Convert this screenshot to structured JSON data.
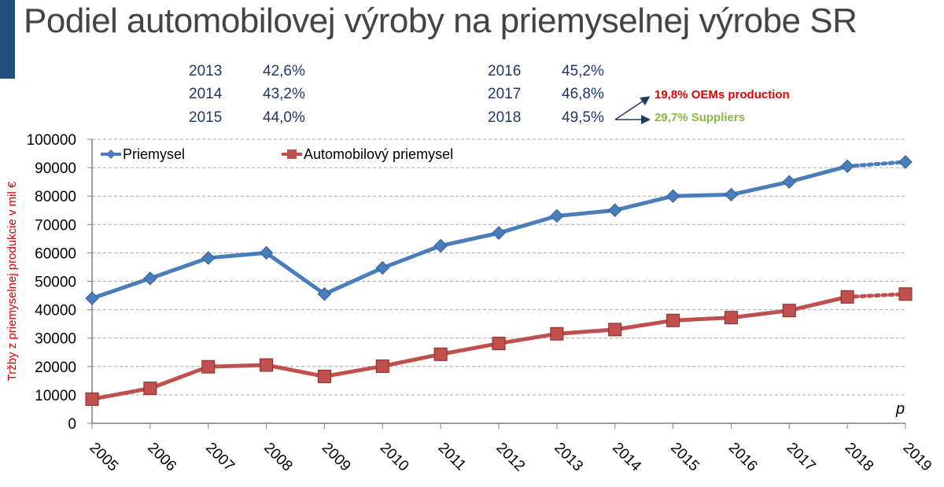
{
  "title": "Podiel automobilovej výroby na priemyselnej výrobe SR",
  "shares": [
    {
      "year": "2013",
      "value": "42,6%"
    },
    {
      "year": "2014",
      "value": "43,2%"
    },
    {
      "year": "2015",
      "value": "44,0%"
    },
    {
      "year": "2016",
      "value": "45,2%"
    },
    {
      "year": "2017",
      "value": "46,8%"
    },
    {
      "year": "2018",
      "value": "49,5%"
    }
  ],
  "annotations": {
    "oem": {
      "text": "19,8% OEMs production",
      "color": "#e00000"
    },
    "suppliers": {
      "text": "29,7% Suppliers",
      "color": "#8cb449"
    }
  },
  "chart_data": {
    "type": "line",
    "x": [
      "2005",
      "2006",
      "2007",
      "2008",
      "2009",
      "2010",
      "2011",
      "2012",
      "2013",
      "2014",
      "2015",
      "2016",
      "2017",
      "2018",
      "2019"
    ],
    "ylabel": "Tržby z priemyselnej produkcie v mil €",
    "ylim": [
      0,
      100000
    ],
    "yticks": [
      0,
      10000,
      20000,
      30000,
      40000,
      50000,
      60000,
      70000,
      80000,
      90000,
      100000
    ],
    "grid": true,
    "legend_position": "top",
    "projection_label": "p",
    "series": [
      {
        "name": "Priemysel",
        "color": "#4a7ebb",
        "values": [
          44000,
          51000,
          58200,
          60000,
          45500,
          54700,
          62500,
          67000,
          73000,
          75000,
          80000,
          80500,
          85000,
          90500,
          92000
        ]
      },
      {
        "name": "Automobilový priemysel",
        "color": "#c0504d",
        "values": [
          8500,
          12300,
          19900,
          20500,
          16500,
          20100,
          24300,
          28100,
          31500,
          33000,
          36200,
          37200,
          39700,
          44500,
          45500
        ]
      }
    ]
  }
}
